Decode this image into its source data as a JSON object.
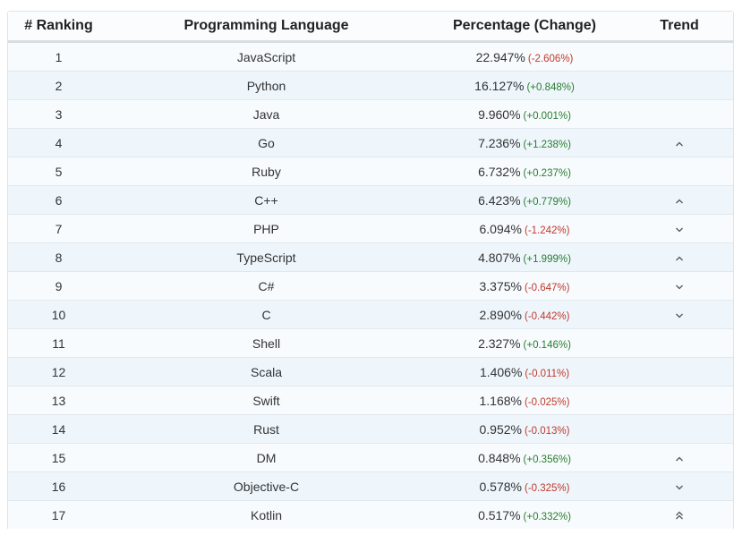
{
  "table": {
    "headers": {
      "rank": "# Ranking",
      "language": "Programming Language",
      "percentage": "Percentage (Change)",
      "trend": "Trend"
    },
    "rows": [
      {
        "rank": "1",
        "language": "JavaScript",
        "percentage": "22.947%",
        "change": "(-2.606%)",
        "dir": "neg",
        "trend": "none"
      },
      {
        "rank": "2",
        "language": "Python",
        "percentage": "16.127%",
        "change": "(+0.848%)",
        "dir": "pos",
        "trend": "none"
      },
      {
        "rank": "3",
        "language": "Java",
        "percentage": "9.960%",
        "change": "(+0.001%)",
        "dir": "pos",
        "trend": "none"
      },
      {
        "rank": "4",
        "language": "Go",
        "percentage": "7.236%",
        "change": "(+1.238%)",
        "dir": "pos",
        "trend": "up"
      },
      {
        "rank": "5",
        "language": "Ruby",
        "percentage": "6.732%",
        "change": "(+0.237%)",
        "dir": "pos",
        "trend": "none"
      },
      {
        "rank": "6",
        "language": "C++",
        "percentage": "6.423%",
        "change": "(+0.779%)",
        "dir": "pos",
        "trend": "up"
      },
      {
        "rank": "7",
        "language": "PHP",
        "percentage": "6.094%",
        "change": "(-1.242%)",
        "dir": "neg",
        "trend": "down"
      },
      {
        "rank": "8",
        "language": "TypeScript",
        "percentage": "4.807%",
        "change": "(+1.999%)",
        "dir": "pos",
        "trend": "up"
      },
      {
        "rank": "9",
        "language": "C#",
        "percentage": "3.375%",
        "change": "(-0.647%)",
        "dir": "neg",
        "trend": "down"
      },
      {
        "rank": "10",
        "language": "C",
        "percentage": "2.890%",
        "change": "(-0.442%)",
        "dir": "neg",
        "trend": "down"
      },
      {
        "rank": "11",
        "language": "Shell",
        "percentage": "2.327%",
        "change": "(+0.146%)",
        "dir": "pos",
        "trend": "none"
      },
      {
        "rank": "12",
        "language": "Scala",
        "percentage": "1.406%",
        "change": "(-0.011%)",
        "dir": "neg",
        "trend": "none"
      },
      {
        "rank": "13",
        "language": "Swift",
        "percentage": "1.168%",
        "change": "(-0.025%)",
        "dir": "neg",
        "trend": "none"
      },
      {
        "rank": "14",
        "language": "Rust",
        "percentage": "0.952%",
        "change": "(-0.013%)",
        "dir": "neg",
        "trend": "none"
      },
      {
        "rank": "15",
        "language": "DM",
        "percentage": "0.848%",
        "change": "(+0.356%)",
        "dir": "pos",
        "trend": "up"
      },
      {
        "rank": "16",
        "language": "Objective-C",
        "percentage": "0.578%",
        "change": "(-0.325%)",
        "dir": "neg",
        "trend": "down"
      },
      {
        "rank": "17",
        "language": "Kotlin",
        "percentage": "0.517%",
        "change": "(+0.332%)",
        "dir": "pos",
        "trend": "double-up"
      }
    ]
  },
  "icons": {
    "up": "chevron-up-icon",
    "down": "chevron-down-icon",
    "double-up": "double-chevron-up-icon"
  },
  "colors": {
    "positive": "#2a7d2e",
    "negative": "#c0392b"
  }
}
